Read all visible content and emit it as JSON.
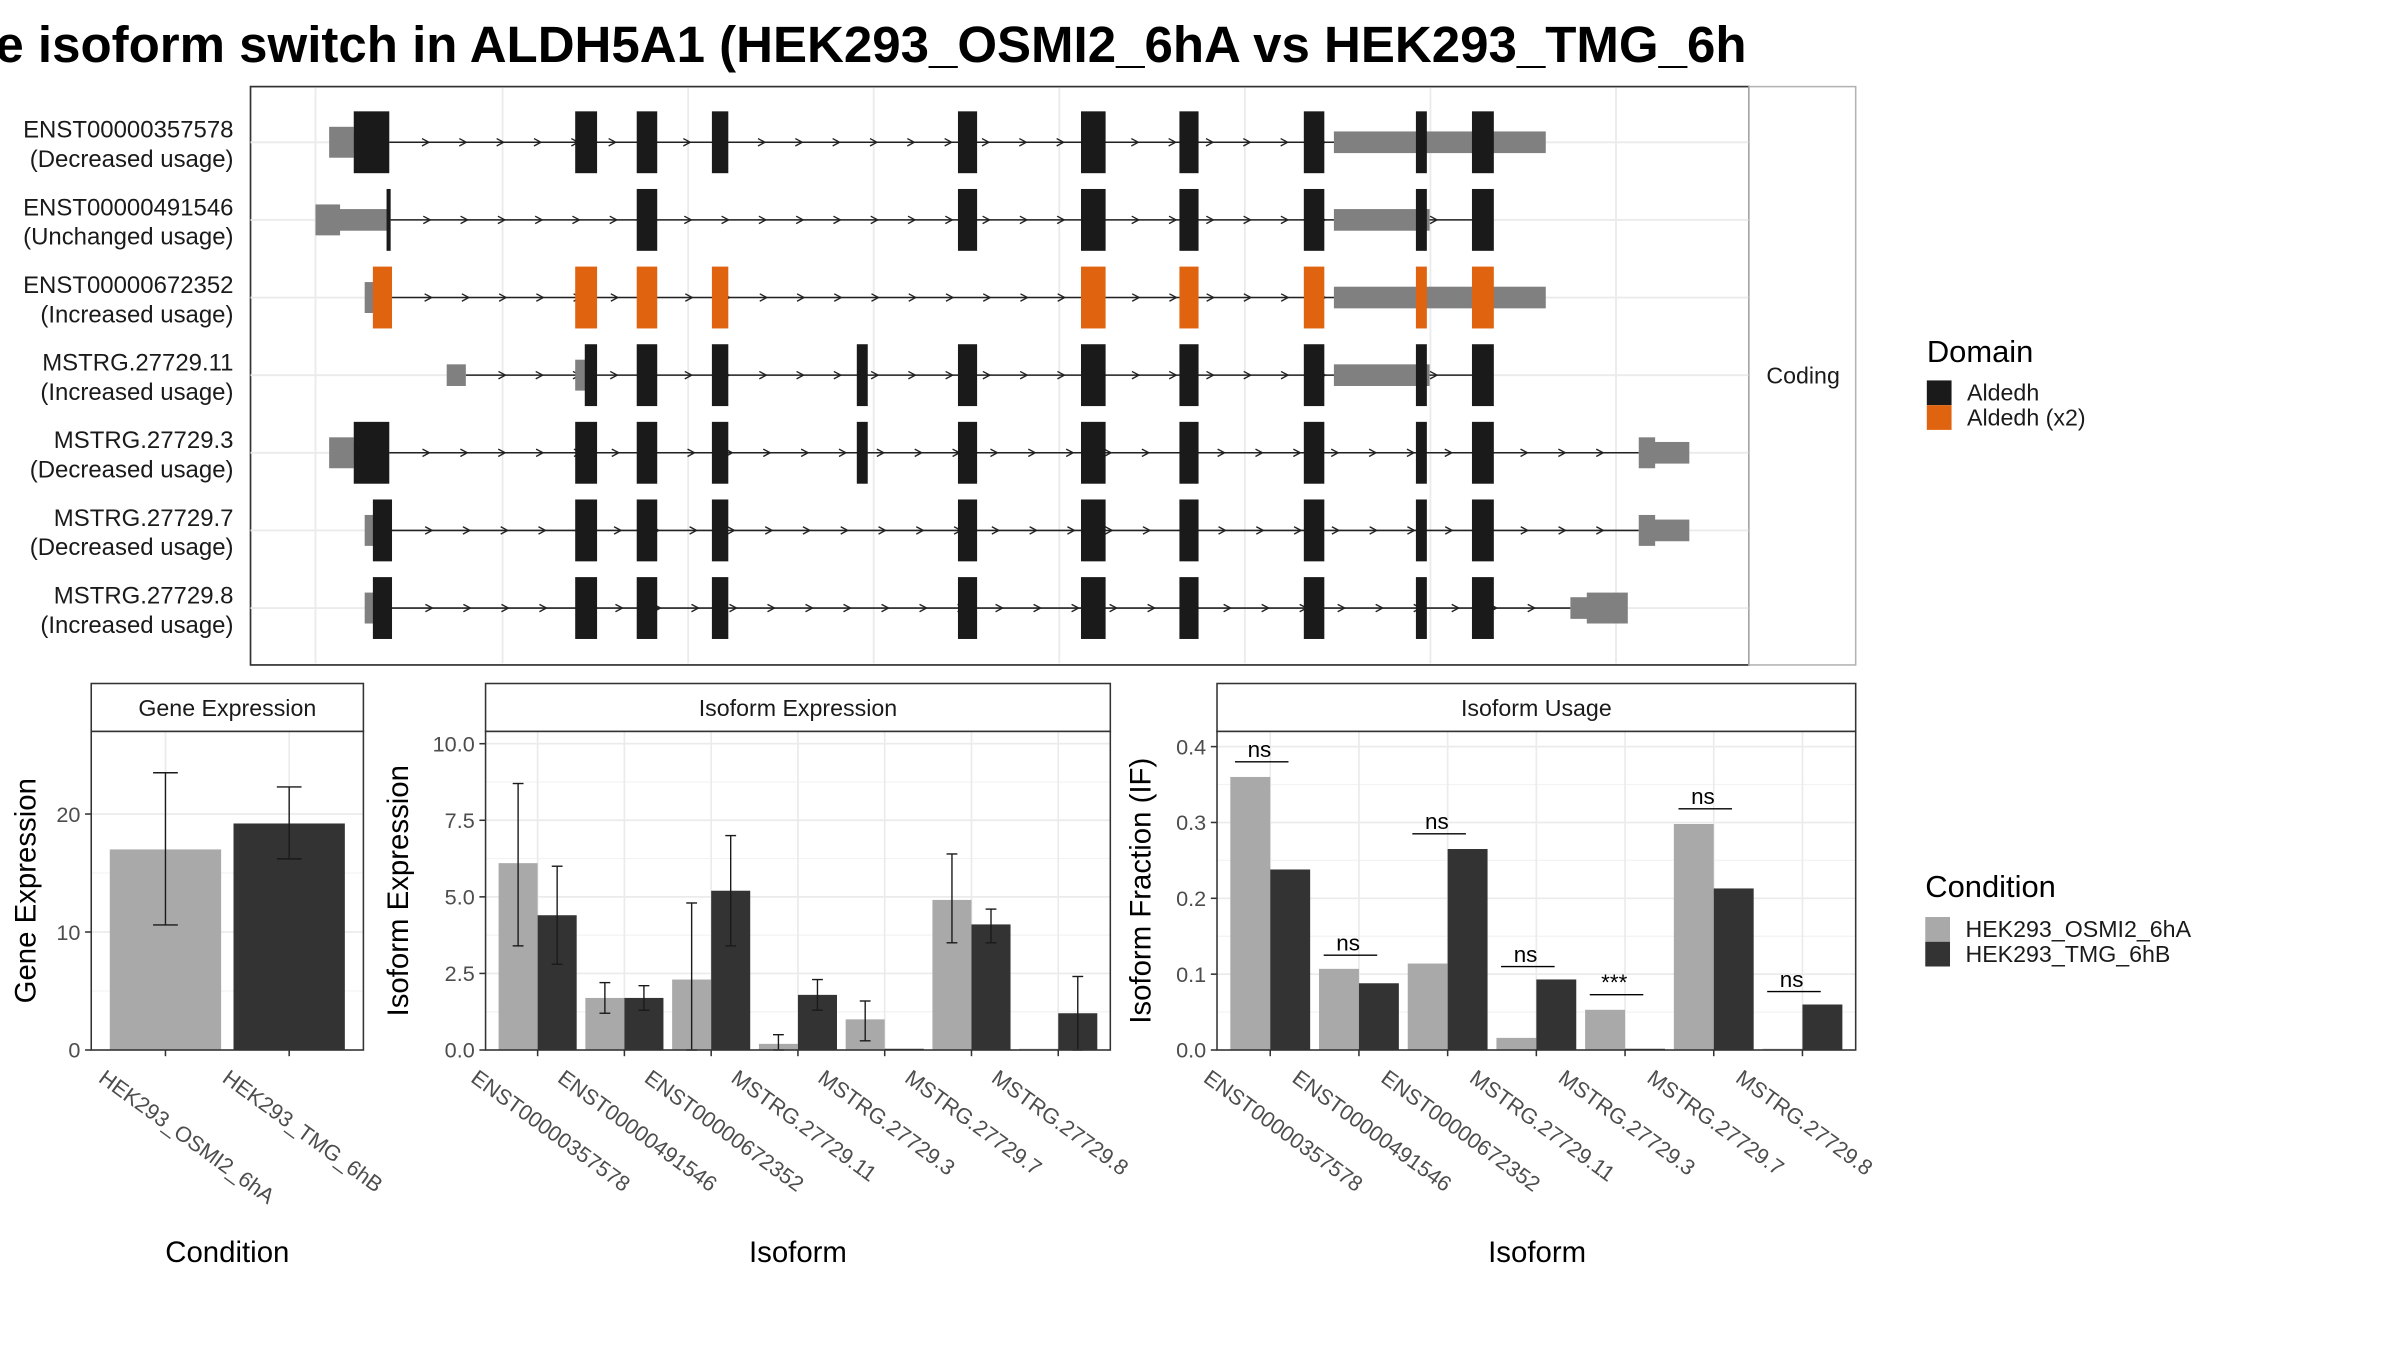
{
  "title": "e isoform switch in ALDH5A1 (HEK293_OSMI2_6hA vs HEK293_TMG_6h",
  "colors": {
    "aldedh": "#1a1a1a",
    "aldedh_x2": "#e06410",
    "utr": "#808080",
    "cond_a": "#a9a9a9",
    "cond_b": "#333333",
    "intron": "#222222"
  },
  "structure": {
    "facet_label": "Coding",
    "xrange": [
      0,
      1000
    ],
    "transcripts": [
      {
        "id": "ENST00000357578",
        "status": "(Decreased usage)",
        "utr": [
          [
            10,
            28,
            "s"
          ],
          [
            14,
            28,
            "t"
          ],
          [
            745,
            900,
            "t"
          ]
        ],
        "exons": [
          [
            28,
            54,
            "aldedh"
          ],
          [
            190,
            206,
            "aldedh"
          ],
          [
            235,
            250,
            "aldedh"
          ],
          [
            290,
            302,
            "aldedh"
          ],
          [
            470,
            484,
            "aldedh"
          ],
          [
            560,
            578,
            "aldedh"
          ],
          [
            632,
            646,
            "aldedh"
          ],
          [
            723,
            738,
            "aldedh"
          ],
          [
            805,
            813,
            "aldedh"
          ],
          [
            846,
            862,
            "aldedh"
          ]
        ],
        "intron": [
          54,
          846
        ]
      },
      {
        "id": "ENST00000491546",
        "status": "(Unchanged usage)",
        "utr": [
          [
            0,
            18,
            "s"
          ],
          [
            16,
            54,
            "t"
          ],
          [
            745,
            815,
            "t"
          ]
        ],
        "exons": [
          [
            52,
            55,
            "aldedh"
          ],
          [
            235,
            250,
            "aldedh"
          ],
          [
            470,
            484,
            "aldedh"
          ],
          [
            560,
            578,
            "aldedh"
          ],
          [
            632,
            646,
            "aldedh"
          ],
          [
            723,
            738,
            "aldedh"
          ],
          [
            805,
            813,
            "aldedh"
          ],
          [
            846,
            862,
            "aldedh"
          ]
        ],
        "intron": [
          55,
          846
        ]
      },
      {
        "id": "ENST00000672352",
        "status": "(Increased usage)",
        "utr": [
          [
            36,
            44,
            "s"
          ],
          [
            745,
            900,
            "t"
          ]
        ],
        "exons": [
          [
            42,
            56,
            "aldedh_x2"
          ],
          [
            190,
            206,
            "aldedh_x2"
          ],
          [
            235,
            250,
            "aldedh_x2"
          ],
          [
            290,
            302,
            "aldedh_x2"
          ],
          [
            560,
            578,
            "aldedh_x2"
          ],
          [
            632,
            646,
            "aldedh_x2"
          ],
          [
            723,
            738,
            "aldedh_x2"
          ],
          [
            805,
            813,
            "aldedh_x2"
          ],
          [
            846,
            862,
            "aldedh_x2"
          ]
        ],
        "intron": [
          56,
          846
        ]
      },
      {
        "id": "MSTRG.27729.11",
        "status": "(Increased usage)",
        "utr": [
          [
            96,
            110,
            "t"
          ],
          [
            190,
            199,
            "s"
          ],
          [
            745,
            815,
            "t"
          ]
        ],
        "exons": [
          [
            197,
            206,
            "aldedh"
          ],
          [
            235,
            250,
            "aldedh"
          ],
          [
            290,
            302,
            "aldedh"
          ],
          [
            396,
            404,
            "aldedh"
          ],
          [
            470,
            484,
            "aldedh"
          ],
          [
            560,
            578,
            "aldedh"
          ],
          [
            632,
            646,
            "aldedh"
          ],
          [
            723,
            738,
            "aldedh"
          ],
          [
            805,
            813,
            "aldedh"
          ],
          [
            846,
            862,
            "aldedh"
          ]
        ],
        "intron": [
          110,
          846
        ]
      },
      {
        "id": "MSTRG.27729.3",
        "status": "(Decreased usage)",
        "utr": [
          [
            10,
            28,
            "s"
          ],
          [
            14,
            28,
            "t"
          ],
          [
            968,
            980,
            "s"
          ],
          [
            978,
            1005,
            "t"
          ]
        ],
        "exons": [
          [
            28,
            54,
            "aldedh"
          ],
          [
            190,
            206,
            "aldedh"
          ],
          [
            235,
            250,
            "aldedh"
          ],
          [
            290,
            302,
            "aldedh"
          ],
          [
            396,
            404,
            "aldedh"
          ],
          [
            470,
            484,
            "aldedh"
          ],
          [
            560,
            578,
            "aldedh"
          ],
          [
            632,
            646,
            "aldedh"
          ],
          [
            723,
            738,
            "aldedh"
          ],
          [
            805,
            813,
            "aldedh"
          ],
          [
            846,
            862,
            "aldedh"
          ]
        ],
        "intron": [
          54,
          968
        ]
      },
      {
        "id": "MSTRG.27729.7",
        "status": "(Decreased usage)",
        "utr": [
          [
            36,
            44,
            "s"
          ],
          [
            968,
            980,
            "s"
          ],
          [
            978,
            1005,
            "t"
          ]
        ],
        "exons": [
          [
            42,
            56,
            "aldedh"
          ],
          [
            190,
            206,
            "aldedh"
          ],
          [
            235,
            250,
            "aldedh"
          ],
          [
            290,
            302,
            "aldedh"
          ],
          [
            470,
            484,
            "aldedh"
          ],
          [
            560,
            578,
            "aldedh"
          ],
          [
            632,
            646,
            "aldedh"
          ],
          [
            723,
            738,
            "aldedh"
          ],
          [
            805,
            813,
            "aldedh"
          ],
          [
            846,
            862,
            "aldedh"
          ]
        ],
        "intron": [
          56,
          968
        ]
      },
      {
        "id": "MSTRG.27729.8",
        "status": "(Increased usage)",
        "utr": [
          [
            36,
            44,
            "s"
          ],
          [
            918,
            933,
            "t"
          ],
          [
            930,
            960,
            "s"
          ]
        ],
        "exons": [
          [
            42,
            56,
            "aldedh"
          ],
          [
            190,
            206,
            "aldedh"
          ],
          [
            235,
            250,
            "aldedh"
          ],
          [
            290,
            302,
            "aldedh"
          ],
          [
            470,
            484,
            "aldedh"
          ],
          [
            560,
            578,
            "aldedh"
          ],
          [
            632,
            646,
            "aldedh"
          ],
          [
            723,
            738,
            "aldedh"
          ],
          [
            805,
            813,
            "aldedh"
          ],
          [
            846,
            862,
            "aldedh"
          ]
        ],
        "intron": [
          56,
          918
        ]
      }
    ]
  },
  "domain_legend": {
    "title": "Domain",
    "items": [
      {
        "label": "Aldedh",
        "color": "#1a1a1a"
      },
      {
        "label": "Aldedh (x2)",
        "color": "#e06410"
      }
    ]
  },
  "condition_legend": {
    "title": "Condition",
    "items": [
      {
        "label": "HEK293_OSMI2_6hA",
        "color": "#a9a9a9"
      },
      {
        "label": "HEK293_TMG_6hB",
        "color": "#333333"
      }
    ]
  },
  "chart_data": [
    {
      "type": "bar",
      "strip": "Gene Expression",
      "xlabel": "Condition",
      "ylabel": "Gene Expression",
      "ylim": [
        0,
        27
      ],
      "yticks": [
        0,
        10,
        20
      ],
      "categories": [
        "HEK293_OSMI2_6hA",
        "HEK293_TMG_6hB"
      ],
      "values": [
        17.0,
        19.2
      ],
      "err_low": [
        10.6,
        16.2
      ],
      "err_high": [
        23.5,
        22.3
      ]
    },
    {
      "type": "bar",
      "strip": "Isoform Expression",
      "xlabel": "Isoform",
      "ylabel": "Isoform Expression",
      "ylim": [
        0,
        10.4
      ],
      "yticks": [
        "0.0",
        "2.5",
        "5.0",
        "7.5",
        "10.0"
      ],
      "categories": [
        "ENST00000357578",
        "ENST00000491546",
        "ENST00000672352",
        "MSTRG.27729.11",
        "MSTRG.27729.3",
        "MSTRG.27729.7",
        "MSTRG.27729.8"
      ],
      "series": [
        {
          "name": "HEK293_OSMI2_6hA",
          "values": [
            6.1,
            1.7,
            2.3,
            0.2,
            1.0,
            4.9,
            0.0
          ],
          "err_low": [
            3.4,
            1.2,
            0.0,
            0.0,
            0.3,
            3.5,
            0.0
          ],
          "err_high": [
            8.7,
            2.2,
            4.8,
            0.5,
            1.6,
            6.4,
            0.0
          ]
        },
        {
          "name": "HEK293_TMG_6hB",
          "values": [
            4.4,
            1.7,
            5.2,
            1.8,
            0.0,
            4.1,
            1.2
          ],
          "err_low": [
            2.8,
            1.3,
            3.4,
            1.3,
            0.0,
            3.5,
            0.0
          ],
          "err_high": [
            6.0,
            2.1,
            7.0,
            2.3,
            0.0,
            4.6,
            2.4
          ]
        }
      ]
    },
    {
      "type": "bar",
      "strip": "Isoform Usage",
      "xlabel": "Isoform",
      "ylabel": "Isoform Fraction (IF)",
      "ylim": [
        0,
        0.42
      ],
      "yticks": [
        "0.0",
        "0.1",
        "0.2",
        "0.3",
        "0.4"
      ],
      "categories": [
        "ENST00000357578",
        "ENST00000491546",
        "ENST00000672352",
        "MSTRG.27729.11",
        "MSTRG.27729.3",
        "MSTRG.27729.7",
        "MSTRG.27729.8"
      ],
      "series": [
        {
          "name": "HEK293_OSMI2_6hA",
          "values": [
            0.36,
            0.107,
            0.114,
            0.016,
            0.053,
            0.298,
            0.0
          ]
        },
        {
          "name": "HEK293_TMG_6hB",
          "values": [
            0.238,
            0.088,
            0.265,
            0.093,
            0.0,
            0.213,
            0.06
          ]
        }
      ],
      "significance": [
        "ns",
        "ns",
        "ns",
        "ns",
        "***",
        "ns",
        "ns"
      ],
      "sig_y": [
        0.38,
        0.125,
        0.285,
        0.11,
        0.073,
        0.318,
        0.077
      ]
    }
  ]
}
